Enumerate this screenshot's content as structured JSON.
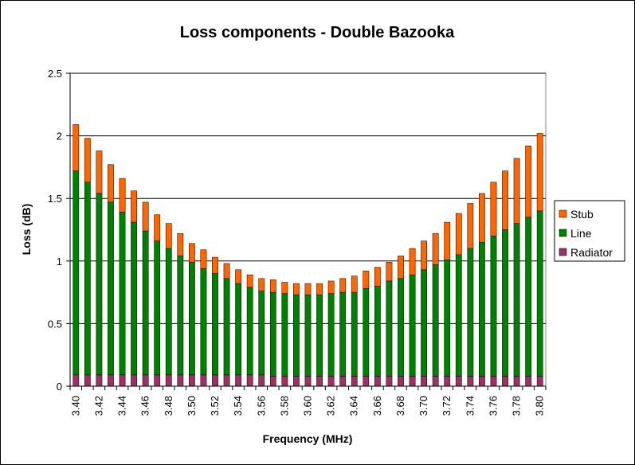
{
  "chart_data": {
    "type": "bar",
    "stacked": true,
    "title": "Loss components - Double Bazooka",
    "xlabel": "Frequency (MHz)",
    "ylabel": "Loss (dB)",
    "ylim": [
      0,
      2.5
    ],
    "yticks": [
      "0",
      "0.5",
      "1",
      "1.5",
      "2",
      "2.5"
    ],
    "grid": true,
    "legend_position": "right",
    "categories": [
      "3.40",
      "3.41",
      "3.42",
      "3.43",
      "3.44",
      "3.45",
      "3.46",
      "3.47",
      "3.48",
      "3.49",
      "3.50",
      "3.51",
      "3.52",
      "3.53",
      "3.54",
      "3.55",
      "3.56",
      "3.57",
      "3.58",
      "3.59",
      "3.60",
      "3.61",
      "3.62",
      "3.63",
      "3.64",
      "3.65",
      "3.66",
      "3.67",
      "3.68",
      "3.69",
      "3.70",
      "3.71",
      "3.72",
      "3.73",
      "3.74",
      "3.75",
      "3.76",
      "3.77",
      "3.78",
      "3.79",
      "3.80"
    ],
    "xtick_labels": [
      "3.40",
      "",
      "3.42",
      "",
      "3.44",
      "",
      "3.46",
      "",
      "3.48",
      "",
      "3.50",
      "",
      "3.52",
      "",
      "3.54",
      "",
      "3.56",
      "",
      "3.58",
      "",
      "3.60",
      "",
      "3.62",
      "",
      "3.64",
      "",
      "3.66",
      "",
      "3.68",
      "",
      "3.70",
      "",
      "3.72",
      "",
      "3.74",
      "",
      "3.76",
      "",
      "3.78",
      "",
      "3.80"
    ],
    "series": [
      {
        "name": "Radiator",
        "color": "#993366",
        "values": [
          0.09,
          0.09,
          0.09,
          0.09,
          0.09,
          0.09,
          0.09,
          0.09,
          0.09,
          0.09,
          0.09,
          0.09,
          0.09,
          0.09,
          0.09,
          0.09,
          0.09,
          0.08,
          0.08,
          0.08,
          0.08,
          0.08,
          0.08,
          0.08,
          0.08,
          0.08,
          0.08,
          0.08,
          0.08,
          0.08,
          0.08,
          0.08,
          0.08,
          0.08,
          0.08,
          0.08,
          0.08,
          0.08,
          0.08,
          0.08,
          0.08
        ]
      },
      {
        "name": "Line",
        "color": "#008000",
        "values": [
          1.63,
          1.54,
          1.45,
          1.38,
          1.3,
          1.22,
          1.15,
          1.07,
          1.01,
          0.95,
          0.9,
          0.85,
          0.81,
          0.77,
          0.73,
          0.7,
          0.67,
          0.67,
          0.66,
          0.65,
          0.65,
          0.65,
          0.66,
          0.67,
          0.67,
          0.7,
          0.72,
          0.76,
          0.78,
          0.81,
          0.85,
          0.89,
          0.93,
          0.97,
          1.02,
          1.07,
          1.12,
          1.17,
          1.22,
          1.27,
          1.32
        ]
      },
      {
        "name": "Stub",
        "color": "#FF6600",
        "values": [
          0.37,
          0.35,
          0.34,
          0.3,
          0.27,
          0.25,
          0.23,
          0.21,
          0.2,
          0.18,
          0.15,
          0.15,
          0.13,
          0.12,
          0.11,
          0.1,
          0.1,
          0.1,
          0.09,
          0.09,
          0.09,
          0.09,
          0.1,
          0.11,
          0.13,
          0.14,
          0.15,
          0.15,
          0.18,
          0.21,
          0.23,
          0.25,
          0.3,
          0.33,
          0.36,
          0.39,
          0.43,
          0.47,
          0.52,
          0.57,
          0.62
        ]
      }
    ],
    "legend_order": [
      "Stub",
      "Line",
      "Radiator"
    ]
  }
}
